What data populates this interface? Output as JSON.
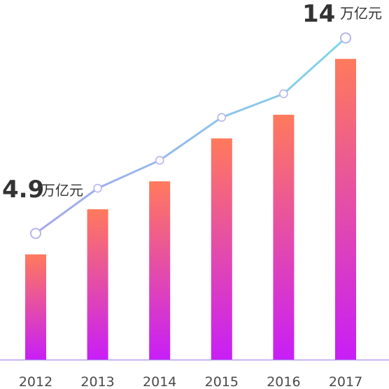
{
  "chart_data": {
    "type": "bar",
    "categories": [
      "2012",
      "2013",
      "2014",
      "2015",
      "2016",
      "2017"
    ],
    "values": [
      4.9,
      7.0,
      8.3,
      10.3,
      11.4,
      14.0
    ],
    "series": [
      {
        "kind": "bar",
        "values": [
          4.9,
          7.0,
          8.3,
          10.3,
          11.4,
          14.0
        ]
      },
      {
        "kind": "line",
        "values": [
          4.9,
          7.0,
          8.3,
          10.3,
          11.4,
          14.0
        ]
      }
    ],
    "ylim": [
      0,
      15
    ],
    "grid": false,
    "legend": "none",
    "annotations": [
      {
        "category": "2012",
        "value_text": "4.9",
        "unit_text": "万亿元"
      },
      {
        "category": "2017",
        "value_text": "14",
        "unit_text": "万亿元"
      }
    ],
    "colors": {
      "bar_top": "#ff7a5c",
      "bar_bottom": "#c81ef7",
      "line_start": "#a6a6ee",
      "line_end": "#7fd6e6",
      "marker_stroke": "#b6b6ec",
      "axis": "#a98df0",
      "text": "#333333",
      "tick_text": "#4a4a4a"
    }
  }
}
